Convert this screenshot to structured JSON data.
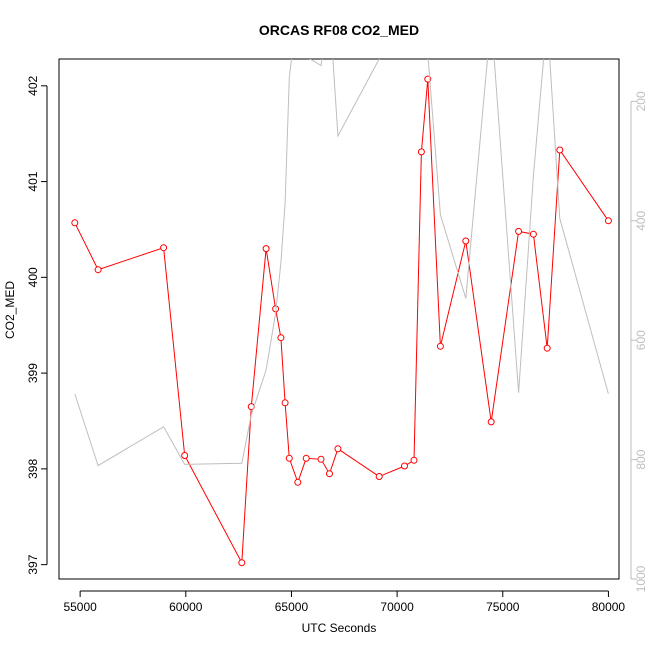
{
  "chart_data": {
    "type": "line",
    "title": "ORCAS RF08 CO2_MED",
    "xlabel": "UTC Seconds",
    "ylabel": "CO2_MED",
    "xlim": [
      54000,
      80500
    ],
    "ylim": [
      396.85,
      402.28
    ],
    "x_ticks": [
      55000,
      60000,
      65000,
      70000,
      75000,
      80000
    ],
    "y_ticks": [
      397,
      398,
      399,
      400,
      401,
      402
    ],
    "y2_ticks": [
      200,
      400,
      600,
      800,
      1000
    ],
    "y2lim": [
      129,
      1000
    ],
    "grid": false,
    "series": [
      {
        "color": "#ff0000",
        "marker": "open-circle",
        "axis": "left",
        "x": [
          54750,
          55850,
          58950,
          59950,
          62650,
          63100,
          63800,
          64250,
          64500,
          64700,
          64900,
          65300,
          65700,
          66400,
          66800,
          67200,
          69150,
          70350,
          70800,
          71150,
          71450,
          72050,
          73250,
          74450,
          75750,
          76450,
          77100,
          77700,
          80000
        ],
        "y": [
          400.57,
          400.08,
          400.31,
          398.14,
          397.02,
          398.65,
          400.3,
          399.67,
          399.37,
          398.69,
          398.11,
          397.86,
          398.11,
          398.1,
          397.95,
          398.21,
          397.92,
          398.03,
          398.09,
          401.31,
          402.07,
          399.28,
          400.38,
          398.49,
          400.48,
          400.45,
          399.26,
          401.33,
          400.59
        ]
      },
      {
        "color": "#bebebe",
        "marker": "none",
        "axis": "right",
        "x": [
          54750,
          55850,
          58950,
          59950,
          62650,
          63100,
          63800,
          64250,
          64500,
          64700,
          64900,
          65300,
          65700,
          66400,
          66800,
          67200,
          69150,
          70350,
          70800,
          71150,
          71450,
          72050,
          73250,
          74450,
          75750,
          76450,
          77100,
          77700,
          80000
        ],
        "y": [
          690,
          810,
          745,
          808,
          806,
          725,
          650,
          555,
          470,
          370,
          160,
          40,
          125,
          140,
          40,
          258,
          129,
          80,
          127,
          126,
          120,
          390,
          530,
          60,
          688,
          325,
          60,
          396,
          690
        ]
      }
    ]
  }
}
